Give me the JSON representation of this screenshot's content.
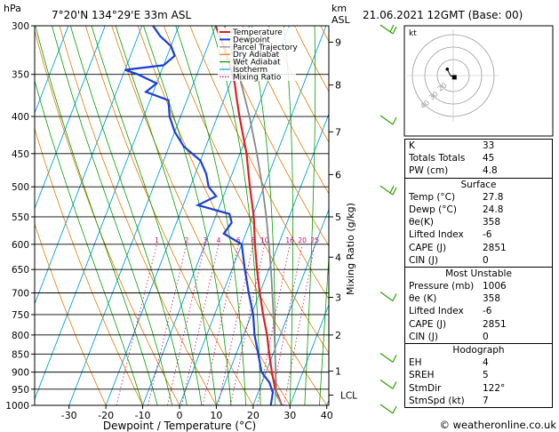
{
  "header": {
    "location": "7°20'N  134°29'E  33m  ASL",
    "run": "21.06.2021  12GMT  (Base: 00)",
    "y_unit": "hPa",
    "km_unit_1": "km",
    "km_unit_2": "ASL"
  },
  "chart_data": {
    "type": "line",
    "chart_kind": "skew-T log-P",
    "xlabel": "Dewpoint / Temperature (°C)",
    "ylabel_right": "Mixing Ratio (g/kg)",
    "x_ticks": [
      -30,
      -20,
      -10,
      0,
      10,
      20,
      30,
      40
    ],
    "xlim": [
      -35,
      40
    ],
    "ylim": [
      1000,
      300
    ],
    "y_scale": "log",
    "p_ticks": [
      300,
      350,
      400,
      450,
      500,
      550,
      600,
      650,
      700,
      750,
      800,
      850,
      900,
      950,
      1000
    ],
    "km_ticks": [
      {
        "label": "9",
        "p": 316
      },
      {
        "label": "8",
        "p": 362
      },
      {
        "label": "7",
        "p": 420
      },
      {
        "label": "6",
        "p": 481
      },
      {
        "label": "5",
        "p": 550
      },
      {
        "label": "4",
        "p": 625
      },
      {
        "label": "3",
        "p": 710
      },
      {
        "label": "2",
        "p": 800
      },
      {
        "label": "1",
        "p": 897
      }
    ],
    "lcl": {
      "label": "LCL",
      "p": 968
    },
    "mixing_ratio_labels": [
      "1",
      "2",
      "3",
      "4",
      "6",
      "8",
      "10",
      "16",
      "20",
      "25"
    ],
    "legend": [
      {
        "name": "Temperature",
        "color": "#e02020"
      },
      {
        "name": "Dewpoint",
        "color": "#1a3fd8"
      },
      {
        "name": "Parcel Trajectory",
        "color": "#888888"
      },
      {
        "name": "Dry Adiabat",
        "color": "#e87a00"
      },
      {
        "name": "Wet Adiabat",
        "color": "#00a000"
      },
      {
        "name": "Isotherm",
        "color": "#00a0e0"
      },
      {
        "name": "Mixing Ratio",
        "color": "#d0007c"
      }
    ],
    "legend_placement": "top-left",
    "series": [
      {
        "name": "Temperature",
        "color": "#e02020",
        "points": [
          [
            1000,
            27.8
          ],
          [
            950,
            24.3
          ],
          [
            900,
            21.6
          ],
          [
            850,
            19.0
          ],
          [
            800,
            16.4
          ],
          [
            750,
            13.2
          ],
          [
            700,
            10.0
          ],
          [
            650,
            6.8
          ],
          [
            600,
            3.6
          ],
          [
            550,
            0.4
          ],
          [
            500,
            -3.8
          ],
          [
            450,
            -8.2
          ],
          [
            400,
            -14.0
          ],
          [
            380,
            -16.4
          ],
          [
            360,
            -18.8
          ],
          [
            340,
            -22.0
          ],
          [
            320,
            -25.8
          ],
          [
            300,
            -30.0
          ]
        ]
      },
      {
        "name": "Dewpoint",
        "color": "#1a3fd8",
        "points": [
          [
            1000,
            24.8
          ],
          [
            960,
            24.0
          ],
          [
            930,
            22.0
          ],
          [
            900,
            18.8
          ],
          [
            850,
            16.0
          ],
          [
            800,
            13.0
          ],
          [
            750,
            10.5
          ],
          [
            700,
            7.0
          ],
          [
            650,
            3.5
          ],
          [
            600,
            0.0
          ],
          [
            580,
            -6.0
          ],
          [
            560,
            -5.0
          ],
          [
            545,
            -6.5
          ],
          [
            530,
            -16.0
          ],
          [
            515,
            -12.0
          ],
          [
            500,
            -15.0
          ],
          [
            480,
            -17.0
          ],
          [
            460,
            -20.0
          ],
          [
            440,
            -26.0
          ],
          [
            420,
            -30.0
          ],
          [
            400,
            -33.0
          ],
          [
            380,
            -35.0
          ],
          [
            370,
            -42.0
          ],
          [
            360,
            -40.0
          ],
          [
            350,
            -46.0
          ],
          [
            345,
            -50.0
          ],
          [
            340,
            -40.0
          ],
          [
            330,
            -38.0
          ],
          [
            320,
            -40.0
          ],
          [
            310,
            -44.0
          ],
          [
            300,
            -47.0
          ]
        ]
      },
      {
        "name": "Parcel Trajectory",
        "color": "#888888",
        "points": [
          [
            1000,
            27.8
          ],
          [
            968,
            25.3
          ],
          [
            900,
            22.6
          ],
          [
            850,
            20.6
          ],
          [
            800,
            18.4
          ],
          [
            750,
            16.0
          ],
          [
            700,
            13.4
          ],
          [
            650,
            10.6
          ],
          [
            600,
            7.4
          ],
          [
            550,
            3.8
          ],
          [
            500,
            -0.4
          ],
          [
            450,
            -5.4
          ],
          [
            400,
            -11.3
          ],
          [
            350,
            -18.6
          ],
          [
            300,
            -27.6
          ]
        ]
      }
    ],
    "wind_barbs": [
      {
        "p": 300,
        "speed_kt": 10
      },
      {
        "p": 400,
        "speed_kt": 5
      },
      {
        "p": 500,
        "speed_kt": 10
      },
      {
        "p": 700,
        "speed_kt": 5
      },
      {
        "p": 850,
        "speed_kt": 5
      },
      {
        "p": 925,
        "speed_kt": 5
      },
      {
        "p": 1000,
        "speed_kt": 5
      }
    ]
  },
  "hodograph": {
    "unit": "kt",
    "ring_labels": [
      "20",
      "30",
      "40"
    ],
    "trace": [
      [
        0,
        0
      ],
      [
        -1.5,
        -0.5
      ],
      [
        -2.5,
        1.0
      ],
      [
        -3.5,
        3.0
      ],
      [
        -4.2,
        4.5
      ]
    ],
    "storm_motion": [
      0.8,
      -1.2
    ]
  },
  "indices": {
    "top": [
      {
        "label": "K",
        "value": "33"
      },
      {
        "label": "Totals Totals",
        "value": "45"
      },
      {
        "label": "PW (cm)",
        "value": "4.8"
      }
    ],
    "surface_title": "Surface",
    "surface": [
      {
        "label": "Temp (°C)",
        "value": "27.8"
      },
      {
        "label": "Dewp (°C)",
        "value": "24.8"
      },
      {
        "label": "θe(K)",
        "value": "358"
      },
      {
        "label": "Lifted Index",
        "value": "-6"
      },
      {
        "label": "CAPE (J)",
        "value": "2851"
      },
      {
        "label": "CIN (J)",
        "value": "0"
      }
    ],
    "unstable_title": "Most Unstable",
    "unstable": [
      {
        "label": "Pressure (mb)",
        "value": "1006"
      },
      {
        "label": "θe (K)",
        "value": "358"
      },
      {
        "label": "Lifted Index",
        "value": "-6"
      },
      {
        "label": "CAPE (J)",
        "value": "2851"
      },
      {
        "label": "CIN (J)",
        "value": "0"
      }
    ],
    "hodo_title": "Hodograph",
    "hodo": [
      {
        "label": "EH",
        "value": "4"
      },
      {
        "label": "SREH",
        "value": "5"
      },
      {
        "label": "StmDir",
        "value": "122°"
      },
      {
        "label": "StmSpd (kt)",
        "value": "7"
      }
    ]
  },
  "footer": {
    "credit": "© weatheronline.co.uk"
  }
}
